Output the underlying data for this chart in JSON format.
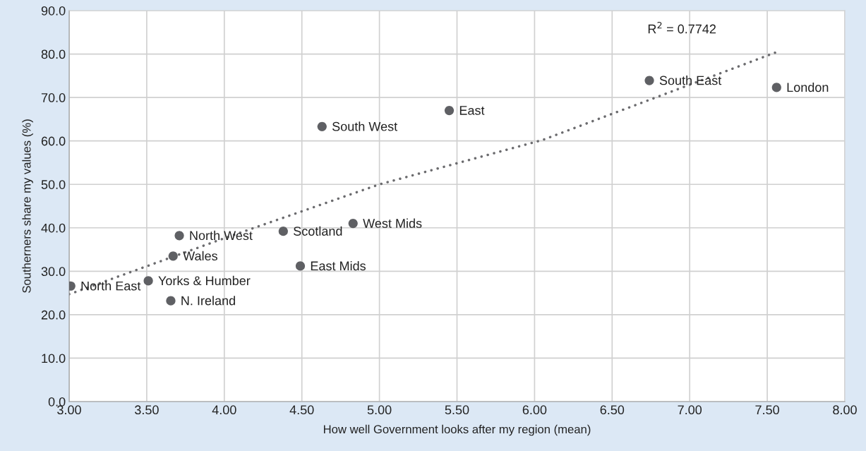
{
  "chart_data": {
    "type": "scatter",
    "xlabel": "How well Government looks after my region (mean)",
    "ylabel": "Southerners share my values (%)",
    "xlim": [
      3.0,
      8.0
    ],
    "xticks": [
      {
        "value": 3.0,
        "label": "3.00"
      },
      {
        "value": 3.5,
        "label": "3.50"
      },
      {
        "value": 4.0,
        "label": "4.00"
      },
      {
        "value": 4.5,
        "label": "4.50"
      },
      {
        "value": 5.0,
        "label": "5.00"
      },
      {
        "value": 5.5,
        "label": "5.50"
      },
      {
        "value": 6.0,
        "label": "6.00"
      },
      {
        "value": 6.5,
        "label": "6.50"
      },
      {
        "value": 7.0,
        "label": "7.00"
      },
      {
        "value": 7.5,
        "label": "7.50"
      },
      {
        "value": 8.0,
        "label": "8.00"
      }
    ],
    "ylim": [
      0,
      90
    ],
    "yticks": [
      {
        "value": 0,
        "label": "0.0"
      },
      {
        "value": 10,
        "label": "10.0"
      },
      {
        "value": 20,
        "label": "20.0"
      },
      {
        "value": 30,
        "label": "30.0"
      },
      {
        "value": 40,
        "label": "40.0"
      },
      {
        "value": 50,
        "label": "50.0"
      },
      {
        "value": 60,
        "label": "60.0"
      },
      {
        "value": 70,
        "label": "70.0"
      },
      {
        "value": 80,
        "label": "80.0"
      },
      {
        "value": 90,
        "label": "90.0"
      }
    ],
    "grid": true,
    "marker": "circle",
    "series": [
      {
        "color": "#5f6064",
        "x": [
          3.01,
          3.51,
          3.655,
          3.67,
          3.71,
          4.38,
          4.49,
          4.83,
          4.63,
          5.45,
          6.74,
          7.56
        ],
        "values": [
          26.6,
          27.8,
          23.2,
          33.5,
          38.2,
          39.2,
          31.2,
          41.0,
          63.3,
          67.0,
          73.9,
          72.3
        ]
      },
      {
        "type": "line",
        "color": "#6b6b6e",
        "line_style": "dotted",
        "marker": "none",
        "x": [
          3.0,
          4.0,
          5.0,
          6.05,
          7.55
        ],
        "values": [
          24.7,
          37.6,
          50.0,
          60.2,
          80.3
        ]
      }
    ],
    "annotations": [
      {
        "text": "North East",
        "x": 3.01,
        "y": 26.6
      },
      {
        "text": "Yorks & Humber",
        "x": 3.51,
        "y": 27.8
      },
      {
        "text": "N. Ireland",
        "x": 3.655,
        "y": 23.2
      },
      {
        "text": "Wales",
        "x": 3.67,
        "y": 33.5
      },
      {
        "text": "North West",
        "x": 3.71,
        "y": 38.2
      },
      {
        "text": "Scotland",
        "x": 4.38,
        "y": 39.2
      },
      {
        "text": "East Mids",
        "x": 4.49,
        "y": 31.2
      },
      {
        "text": "West Mids",
        "x": 4.83,
        "y": 41.0
      },
      {
        "text": "South West",
        "x": 4.63,
        "y": 63.3
      },
      {
        "text": "East",
        "x": 5.45,
        "y": 67.0
      },
      {
        "text": "South East",
        "x": 6.74,
        "y": 73.9
      },
      {
        "text": "London",
        "x": 7.56,
        "y": 72.3
      },
      "R$^{2}$ = 0.7742"
    ]
  }
}
